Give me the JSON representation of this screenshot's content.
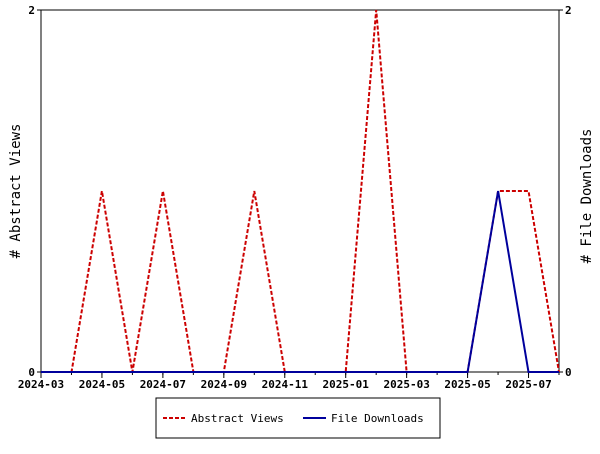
{
  "chart_data": {
    "type": "line",
    "x_axis": {
      "type": "date",
      "range": [
        "2024-03",
        "2025-08"
      ],
      "ticks": [
        "2024-03",
        "2024-05",
        "2024-07",
        "2024-09",
        "2024-11",
        "2025-01",
        "2025-03",
        "2025-05",
        "2025-07"
      ]
    },
    "y_left": {
      "label": "# Abstract Views",
      "range": [
        0,
        2
      ],
      "ticks": [
        "0",
        "2"
      ]
    },
    "y_right": {
      "label": "# File Downloads",
      "range": [
        0,
        2
      ],
      "ticks": [
        "0",
        "2"
      ]
    },
    "x": [
      "2024-03",
      "2024-04",
      "2024-05",
      "2024-06",
      "2024-07",
      "2024-08",
      "2024-09",
      "2024-10",
      "2024-11",
      "2024-12",
      "2025-01",
      "2025-02",
      "2025-03",
      "2025-04",
      "2025-05",
      "2025-06",
      "2025-07",
      "2025-08"
    ],
    "series": [
      {
        "name": "Abstract Views",
        "axis": "left",
        "color": "#cc0000",
        "dash": "dashed",
        "values": [
          0,
          0,
          1,
          0,
          1,
          0,
          0,
          1,
          0,
          0,
          0,
          2,
          0,
          0,
          0,
          1,
          1,
          0
        ]
      },
      {
        "name": "File Downloads",
        "axis": "right",
        "color": "#00009c",
        "dash": "solid",
        "values": [
          0,
          0,
          0,
          0,
          0,
          0,
          0,
          0,
          0,
          0,
          0,
          0,
          0,
          0,
          0,
          1,
          0,
          0
        ]
      }
    ],
    "grid": false,
    "legend_position": "bottom"
  }
}
